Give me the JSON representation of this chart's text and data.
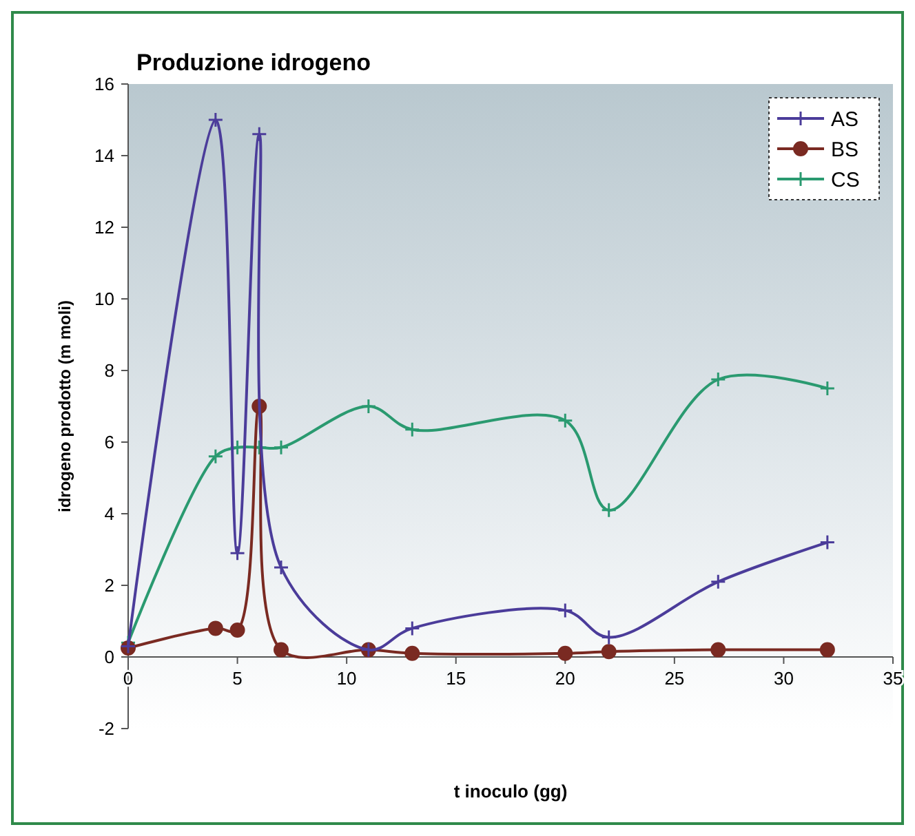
{
  "chart_data": {
    "type": "line",
    "title": "Produzione idrogeno",
    "xlabel": "t inoculo (gg)",
    "ylabel": "idrogeno prodotto (m moli)",
    "xlim": [
      0,
      35
    ],
    "xticks": [
      0,
      5,
      10,
      15,
      20,
      25,
      30,
      35
    ],
    "ylim": [
      -2,
      16
    ],
    "yticks": [
      -2,
      0,
      2,
      4,
      6,
      8,
      10,
      12,
      14,
      16
    ],
    "grid": false,
    "legend": "top right",
    "x": [
      0,
      4,
      5,
      6,
      7,
      11,
      13,
      20,
      22,
      27,
      32
    ],
    "series": [
      {
        "name": "AS",
        "color": "#4b3c9a",
        "marker": "cross",
        "values": [
          0.3,
          15,
          2.9,
          14.6,
          2.5,
          0.2,
          0.8,
          1.3,
          0.55,
          2.1,
          3.2
        ]
      },
      {
        "name": "BS",
        "color": "#7a2a22",
        "marker": "circle",
        "values": [
          0.25,
          0.8,
          0.75,
          7,
          0.2,
          0.2,
          0.1,
          0.1,
          0.15,
          0.2,
          0.2
        ]
      },
      {
        "name": "CS",
        "color": "#2a9a70",
        "marker": "cross",
        "values": [
          0.4,
          5.6,
          5.85,
          5.85,
          5.85,
          7,
          6.35,
          6.6,
          4.1,
          7.75,
          7.5
        ]
      }
    ]
  }
}
